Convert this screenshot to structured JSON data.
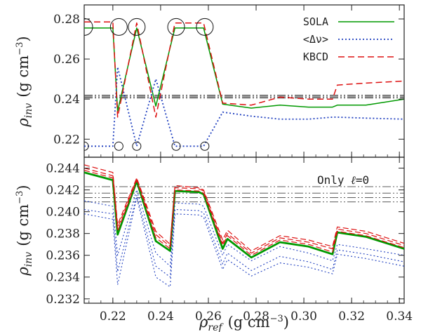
{
  "chart_data": [
    {
      "id": "top",
      "type": "line",
      "xlim": [
        0.208,
        0.342
      ],
      "ylim": [
        0.211,
        0.287
      ],
      "xticks": [
        0.22,
        0.24,
        0.26,
        0.28,
        0.3,
        0.32,
        0.34
      ],
      "yticks": [
        0.22,
        0.24,
        0.26,
        0.28
      ],
      "yticklabels": [
        "0.22",
        "0.24",
        "0.26",
        "0.28"
      ],
      "ylabel": {
        "rho": "ρ",
        "sub": "inv",
        "units": "(g cm",
        "exp": "−3",
        "close": ")"
      },
      "legend": {
        "position": "top-right",
        "entries": [
          "SOLA",
          "<Δν>",
          "KBCD"
        ]
      },
      "hlines": [
        0.2405,
        0.241,
        0.2415,
        0.242
      ],
      "x": [
        0.208,
        0.22,
        0.222,
        0.23,
        0.238,
        0.246,
        0.258,
        0.266,
        0.278,
        0.29,
        0.302,
        0.312,
        0.314,
        0.326,
        0.342
      ],
      "series": [
        {
          "name": "SOLA",
          "color": "#009900",
          "dash": "",
          "width": 1.5,
          "values": [
            0.2755,
            0.2755,
            0.234,
            0.2755,
            0.2365,
            0.2755,
            0.2755,
            0.2375,
            0.2355,
            0.237,
            0.236,
            0.236,
            0.237,
            0.237,
            0.24
          ]
        },
        {
          "name": "<Δν>",
          "color": "#1f3fbf",
          "dash": "2 3",
          "width": 1.8,
          "values": [
            0.2165,
            0.2165,
            0.256,
            0.2165,
            0.25,
            0.2165,
            0.2165,
            0.2335,
            0.2315,
            0.23,
            0.23,
            0.231,
            0.231,
            0.2305,
            0.23
          ]
        },
        {
          "name": "KBCD",
          "color": "#dd1111",
          "dash": "9 5",
          "width": 1.5,
          "values": [
            0.2785,
            0.2785,
            0.231,
            0.278,
            0.231,
            0.278,
            0.278,
            0.238,
            0.237,
            0.241,
            0.24,
            0.24,
            0.247,
            0.248,
            0.249
          ]
        }
      ],
      "circles": [
        {
          "x": 0.208,
          "y": 0.276
        },
        {
          "x": 0.2225,
          "y": 0.276
        },
        {
          "x": 0.23,
          "y": 0.276
        },
        {
          "x": 0.2465,
          "y": 0.276
        },
        {
          "x": 0.2585,
          "y": 0.276
        },
        {
          "x": 0.208,
          "y": 0.2165
        },
        {
          "x": 0.2225,
          "y": 0.2165
        },
        {
          "x": 0.23,
          "y": 0.2165
        },
        {
          "x": 0.2465,
          "y": 0.2165
        },
        {
          "x": 0.2585,
          "y": 0.2165
        }
      ]
    },
    {
      "id": "bottom",
      "type": "line",
      "xlim": [
        0.208,
        0.342
      ],
      "ylim": [
        0.2316,
        0.245
      ],
      "xticks": [
        0.22,
        0.24,
        0.26,
        0.28,
        0.3,
        0.32,
        0.34
      ],
      "xticklabels": [
        "0.22",
        "0.24",
        "0.26",
        "0.28",
        "0.30",
        "0.32",
        "0.34"
      ],
      "yticks": [
        0.232,
        0.234,
        0.236,
        0.238,
        0.24,
        0.242,
        0.244
      ],
      "yticklabels": [
        "0.232",
        "0.234",
        "0.236",
        "0.238",
        "0.240",
        "0.242",
        "0.244"
      ],
      "ylabel": {
        "rho": "ρ",
        "sub": "inv",
        "units": "(g cm",
        "exp": "−3",
        "close": ")"
      },
      "xlabel": {
        "rho": "ρ",
        "sub": "ref",
        "units": "(g cm",
        "exp": "−3",
        "close": ")"
      },
      "annotation": {
        "text": "Only ",
        "symbol": "ℓ",
        "rest": "=0"
      },
      "hlines": [
        0.2409,
        0.2413,
        0.2417,
        0.2423
      ],
      "x": [
        0.208,
        0.22,
        0.222,
        0.23,
        0.238,
        0.244,
        0.246,
        0.256,
        0.258,
        0.266,
        0.268,
        0.278,
        0.29,
        0.302,
        0.312,
        0.314,
        0.326,
        0.342
      ],
      "series": [
        {
          "name": "SOLA",
          "color": "#009900",
          "dash": "",
          "width": 2.8,
          "values": [
            0.2436,
            0.2429,
            0.2379,
            0.2428,
            0.2373,
            0.2364,
            0.2419,
            0.2418,
            0.2416,
            0.2366,
            0.2375,
            0.2358,
            0.2372,
            0.2368,
            0.2361,
            0.2381,
            0.2377,
            0.2366
          ]
        },
        {
          "name": "KBCD upper",
          "color": "#dd1111",
          "dash": "8 4",
          "width": 1.2,
          "values": [
            0.2443,
            0.2436,
            0.2388,
            0.2431,
            0.2382,
            0.237,
            0.2424,
            0.2422,
            0.242,
            0.2374,
            0.2383,
            0.2364,
            0.2378,
            0.2374,
            0.2368,
            0.2386,
            0.2382,
            0.2371
          ]
        },
        {
          "name": "KBCD mid",
          "color": "#dd1111",
          "dash": "8 4",
          "width": 1.2,
          "values": [
            0.244,
            0.2433,
            0.2385,
            0.243,
            0.2379,
            0.2368,
            0.2422,
            0.2421,
            0.2419,
            0.2371,
            0.238,
            0.2362,
            0.2376,
            0.2372,
            0.2366,
            0.2384,
            0.238,
            0.2369
          ]
        },
        {
          "name": "KBCD lower",
          "color": "#dd1111",
          "dash": "8 4",
          "width": 1.2,
          "values": [
            0.2438,
            0.2431,
            0.2382,
            0.2429,
            0.2376,
            0.2366,
            0.242,
            0.2419,
            0.2417,
            0.2369,
            0.2378,
            0.236,
            0.2374,
            0.237,
            0.2363,
            0.2382,
            0.2378,
            0.2367
          ]
        },
        {
          "name": "<Δν> 1",
          "color": "#1f3fbf",
          "dash": "2 3",
          "width": 1.1,
          "values": [
            0.241,
            0.2405,
            0.236,
            0.242,
            0.2362,
            0.235,
            0.2408,
            0.2407,
            0.2405,
            0.236,
            0.237,
            0.2355,
            0.2368,
            0.2362,
            0.2355,
            0.237,
            0.2366,
            0.236
          ]
        },
        {
          "name": "<Δν> 2",
          "color": "#1f3fbf",
          "dash": "2 3",
          "width": 1.1,
          "values": [
            0.2402,
            0.2398,
            0.2345,
            0.2415,
            0.235,
            0.234,
            0.2402,
            0.2401,
            0.2399,
            0.2352,
            0.2362,
            0.2346,
            0.2359,
            0.2354,
            0.2347,
            0.2365,
            0.2361,
            0.2354
          ]
        },
        {
          "name": "<Δν> 3",
          "color": "#1f3fbf",
          "dash": "2 3",
          "width": 1.1,
          "values": [
            0.2398,
            0.2393,
            0.2333,
            0.2413,
            0.234,
            0.2331,
            0.2398,
            0.2397,
            0.2395,
            0.2347,
            0.2356,
            0.2341,
            0.2353,
            0.2349,
            0.2343,
            0.2361,
            0.2357,
            0.235
          ]
        }
      ]
    }
  ]
}
